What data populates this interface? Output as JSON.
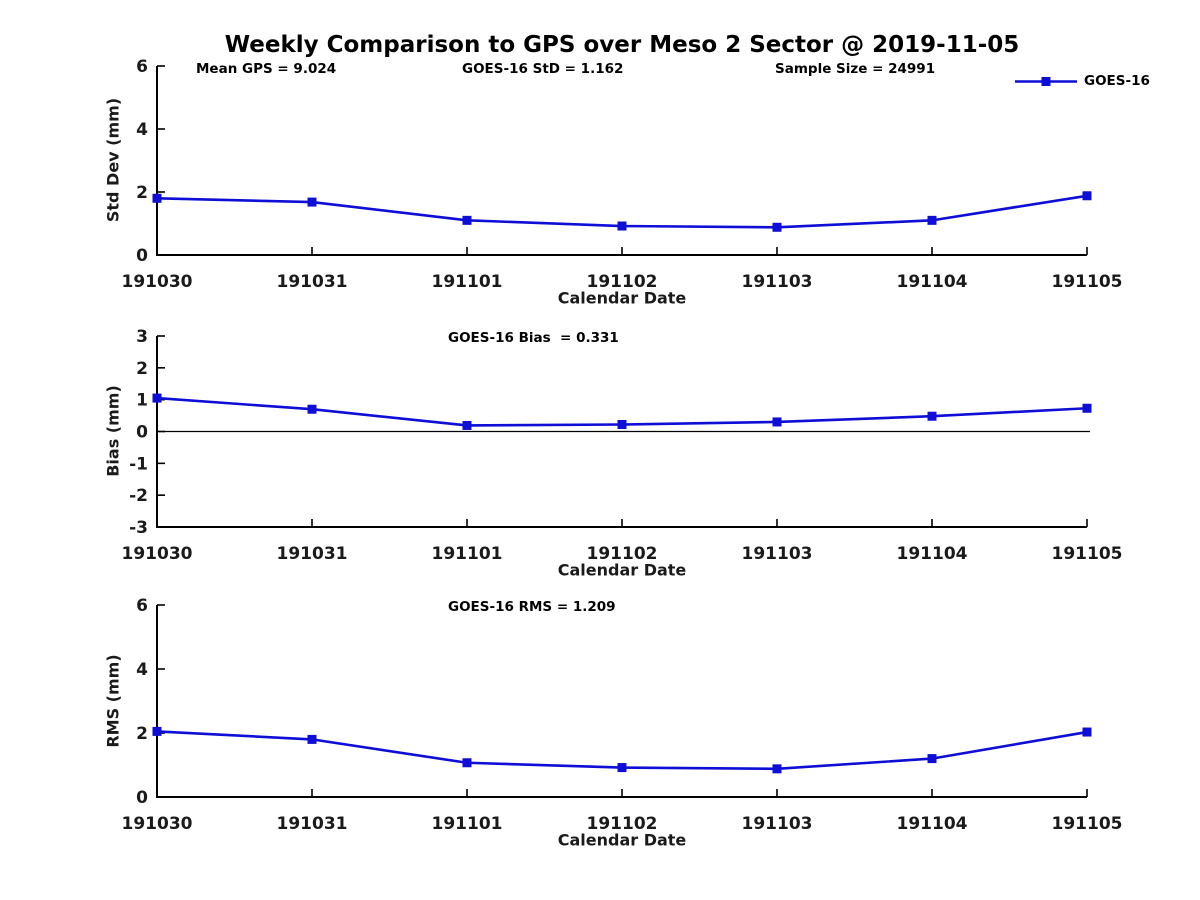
{
  "figure": {
    "title": "Weekly Comparison to GPS over Meso 2 Sector @ 2019-11-05",
    "accent_color": "#0e0ed6",
    "text_color": "#1a1a1a",
    "background_color": "#ffffff"
  },
  "legend": {
    "label": "GOES-16",
    "position": "top-right",
    "marker": "filled-square-on-line"
  },
  "chart_data": [
    {
      "type": "line",
      "title": "",
      "annotations": [
        "Mean GPS = 9.024",
        "GOES-16 StD = 1.162",
        "Sample Size = 24991"
      ],
      "categories": [
        "191030",
        "191031",
        "191101",
        "191102",
        "191103",
        "191104",
        "191105"
      ],
      "series": [
        {
          "name": "GOES-16",
          "values": [
            1.8,
            1.68,
            1.1,
            0.92,
            0.88,
            1.1,
            1.88
          ]
        }
      ],
      "xlabel": "Calendar Date",
      "ylabel": "Std Dev (mm)",
      "ylim": [
        0,
        6
      ],
      "yticks": [
        0,
        2,
        4,
        6
      ],
      "grid": false,
      "zero_line": false,
      "legend_position": "top-right"
    },
    {
      "type": "line",
      "title": "",
      "annotations": [
        "GOES-16 Bias  = 0.331"
      ],
      "categories": [
        "191030",
        "191031",
        "191101",
        "191102",
        "191103",
        "191104",
        "191105"
      ],
      "series": [
        {
          "name": "GOES-16",
          "values": [
            1.05,
            0.7,
            0.19,
            0.22,
            0.3,
            0.48,
            0.73
          ]
        }
      ],
      "xlabel": "Calendar Date",
      "ylabel": "Bias (mm)",
      "ylim": [
        -3,
        3
      ],
      "yticks": [
        -3,
        -2,
        -1,
        0,
        1,
        2,
        3
      ],
      "grid": false,
      "zero_line": true,
      "legend_position": "none"
    },
    {
      "type": "line",
      "title": "",
      "annotations": [
        "GOES-16 RMS = 1.209"
      ],
      "categories": [
        "191030",
        "191031",
        "191101",
        "191102",
        "191103",
        "191104",
        "191105"
      ],
      "series": [
        {
          "name": "GOES-16",
          "values": [
            2.05,
            1.8,
            1.07,
            0.92,
            0.88,
            1.2,
            2.03
          ]
        }
      ],
      "xlabel": "Calendar Date",
      "ylabel": "RMS (mm)",
      "ylim": [
        0,
        6
      ],
      "yticks": [
        0,
        2,
        4,
        6
      ],
      "grid": false,
      "zero_line": false,
      "legend_position": "none"
    }
  ]
}
